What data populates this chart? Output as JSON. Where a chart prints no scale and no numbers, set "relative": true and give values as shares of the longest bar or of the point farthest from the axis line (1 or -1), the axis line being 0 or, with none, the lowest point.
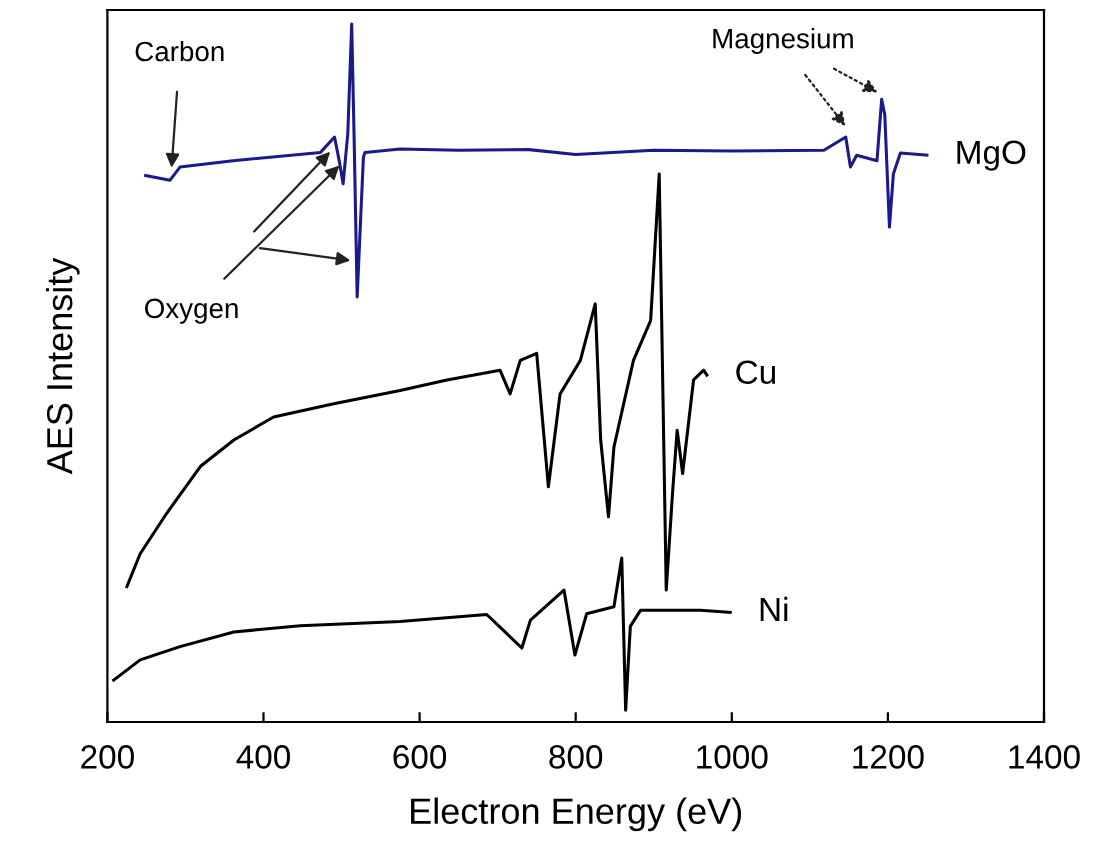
{
  "chart_data": {
    "type": "line",
    "relative": true,
    "xlabel": "Electron Energy (eV)",
    "ylabel": "AES Intensity",
    "xlim": [
      200,
      1400
    ],
    "xticks": [
      200,
      400,
      600,
      800,
      1000,
      1200,
      1400
    ],
    "grid": false,
    "legend": false,
    "marker": "none",
    "line_style": "solid",
    "series": [
      {
        "name": "MgO",
        "color": "#1a1a8c",
        "x": [
          249,
          280,
          293,
          361,
          473,
          491,
          497,
          502,
          508,
          513,
          516,
          520,
          528,
          530,
          575,
          650,
          740,
          800,
          900,
          1000,
          1118,
          1146,
          1152,
          1160,
          1186,
          1192,
          1196,
          1202,
          1207,
          1216,
          1250
        ],
        "values": [
          0.783,
          0.776,
          0.795,
          0.804,
          0.816,
          0.838,
          0.804,
          0.771,
          0.843,
          1.0,
          0.843,
          0.609,
          0.809,
          0.816,
          0.821,
          0.819,
          0.82,
          0.813,
          0.819,
          0.818,
          0.819,
          0.838,
          0.795,
          0.812,
          0.804,
          0.892,
          0.87,
          0.709,
          0.785,
          0.815,
          0.812
        ]
      },
      {
        "name": "Cu",
        "color": "#000000",
        "x": [
          225,
          242,
          276,
          319,
          362,
          413,
          490,
          575,
          635,
          703,
          716,
          729,
          750,
          765,
          780,
          806,
          825,
          832,
          842,
          849,
          874,
          896,
          907,
          916,
          924,
          930,
          937,
          951,
          964,
          968
        ],
        "values": [
          0.194,
          0.241,
          0.299,
          0.366,
          0.404,
          0.437,
          0.456,
          0.475,
          0.49,
          0.504,
          0.47,
          0.518,
          0.528,
          0.337,
          0.47,
          0.518,
          0.599,
          0.404,
          0.294,
          0.394,
          0.518,
          0.575,
          0.785,
          0.189,
          0.327,
          0.418,
          0.356,
          0.49,
          0.504,
          0.497
        ]
      },
      {
        "name": "Ni",
        "color": "#000000",
        "x": [
          208,
          242,
          293,
          362,
          447,
          575,
          686,
          731,
          742,
          785,
          799,
          814,
          849,
          859,
          864,
          870,
          883,
          960,
          998
        ],
        "values": [
          0.06,
          0.089,
          0.108,
          0.129,
          0.138,
          0.144,
          0.154,
          0.106,
          0.146,
          0.189,
          0.096,
          0.155,
          0.165,
          0.235,
          0.017,
          0.137,
          0.16,
          0.16,
          0.157
        ]
      }
    ],
    "annotations": [
      {
        "text": "Carbon",
        "x": 282,
        "y": 0.79
      },
      {
        "text": "Oxygen",
        "x": 500,
        "y": 0.8
      },
      {
        "text": "Magnesium",
        "x": 1190,
        "y": 0.9
      }
    ]
  }
}
